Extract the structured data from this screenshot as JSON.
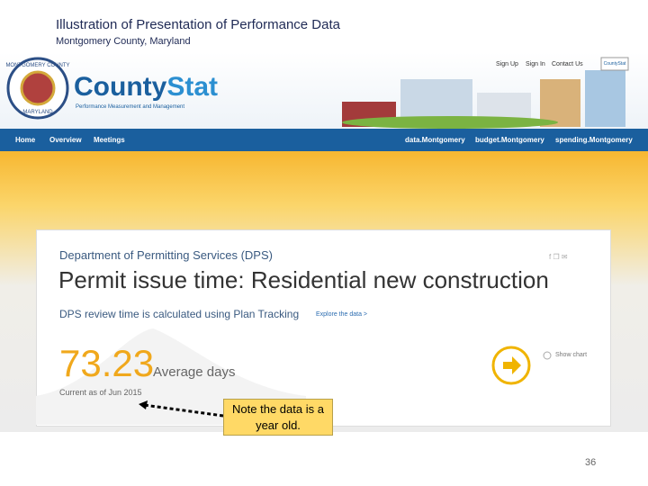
{
  "slide": {
    "title": "Illustration of Presentation of Performance Data",
    "subtitle": "Montgomery County, Maryland",
    "page_number": "36"
  },
  "header": {
    "seal_top": "MONTGOMERY COUNTY",
    "seal_bottom": "MARYLAND",
    "logo_county": "County",
    "logo_stat": "Stat",
    "tagline": "Performance Measurement and Management",
    "top_links": [
      "Sign Up",
      "Sign In",
      "Contact Us"
    ],
    "badge": "CountyStat"
  },
  "nav": {
    "left": [
      "Home",
      "Overview",
      "Meetings"
    ],
    "right": [
      "data.Montgomery",
      "budget.Montgomery",
      "spending.Montgomery"
    ]
  },
  "card": {
    "department": "Department of Permitting Services (DPS)",
    "heading": "Permit issue time: Residential new construction",
    "description": "DPS review time is calculated using Plan Tracking",
    "explore": "Explore the data >",
    "value": "73.23",
    "unit": "Average days",
    "current": "Current as of Jun 2015",
    "show_chart": "Show chart"
  },
  "note": "Note the data is a year old."
}
